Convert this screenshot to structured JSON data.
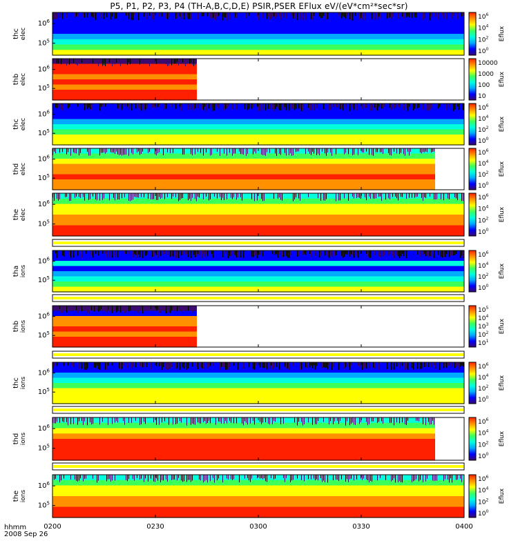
{
  "title": "P5, P1, P2, P3, P4 (TH-A,B,C,D,E) PSIR,PSER EFlux eV/(eV*cm²*sec*sr)",
  "footer": {
    "time_label": "hhmm",
    "date_label": "2008 Sep 26"
  },
  "chart_data": {
    "type": "heatmap",
    "x_ticks": [
      "0200",
      "0230",
      "0300",
      "0330",
      "0400"
    ],
    "panels": [
      {
        "name": "thc-elec",
        "probe": "thc",
        "species": "elec",
        "y_ticks": [
          {
            "base": "10",
            "exp": "6"
          },
          {
            "base": "10",
            "exp": "5"
          }
        ],
        "cbar_label": "Eflux",
        "cbar_ticks": [
          {
            "base": "10",
            "exp": "6"
          },
          {
            "base": "10",
            "exp": "4"
          },
          {
            "base": "10",
            "exp": "2"
          },
          {
            "base": "10",
            "exp": "0"
          }
        ],
        "coverage_end": 1.0
      },
      {
        "name": "thb-elec",
        "probe": "thb",
        "species": "elec",
        "y_ticks": [
          {
            "base": "10",
            "exp": "6"
          },
          {
            "base": "10",
            "exp": "5"
          }
        ],
        "cbar_label": "Eflux",
        "cbar_ticks": [
          {
            "base": "10000",
            "exp": ""
          },
          {
            "base": "1000",
            "exp": ""
          },
          {
            "base": "100",
            "exp": ""
          },
          {
            "base": "10",
            "exp": ""
          }
        ],
        "coverage_end": 0.35
      },
      {
        "name": "thc-elec-2",
        "probe": "thc",
        "species": "elec",
        "y_ticks": [
          {
            "base": "10",
            "exp": "6"
          },
          {
            "base": "10",
            "exp": "5"
          }
        ],
        "cbar_label": "Eflux",
        "cbar_ticks": [
          {
            "base": "10",
            "exp": "6"
          },
          {
            "base": "10",
            "exp": "4"
          },
          {
            "base": "10",
            "exp": "2"
          },
          {
            "base": "10",
            "exp": "0"
          }
        ],
        "coverage_end": 1.0
      },
      {
        "name": "thd-elec",
        "probe": "thd",
        "species": "elec",
        "y_ticks": [
          {
            "base": "10",
            "exp": "6"
          },
          {
            "base": "10",
            "exp": "5"
          }
        ],
        "cbar_label": "Eflux",
        "cbar_ticks": [
          {
            "base": "10",
            "exp": "6"
          },
          {
            "base": "10",
            "exp": "4"
          },
          {
            "base": "10",
            "exp": "2"
          },
          {
            "base": "10",
            "exp": "0"
          }
        ],
        "coverage_end": 0.93
      },
      {
        "name": "the-elec",
        "probe": "the",
        "species": "elec",
        "y_ticks": [
          {
            "base": "10",
            "exp": "6"
          },
          {
            "base": "10",
            "exp": "5"
          }
        ],
        "cbar_label": "Eflux",
        "cbar_ticks": [
          {
            "base": "10",
            "exp": "6"
          },
          {
            "base": "10",
            "exp": "4"
          },
          {
            "base": "10",
            "exp": "2"
          },
          {
            "base": "10",
            "exp": "0"
          }
        ],
        "coverage_end": 1.0
      },
      {
        "name": "tha-ions",
        "probe": "tha",
        "species": "ions",
        "y_ticks": [
          {
            "base": "10",
            "exp": "6"
          },
          {
            "base": "10",
            "exp": "5"
          }
        ],
        "cbar_label": "Eflux",
        "cbar_ticks": [
          {
            "base": "10",
            "exp": "6"
          },
          {
            "base": "10",
            "exp": "4"
          },
          {
            "base": "10",
            "exp": "2"
          },
          {
            "base": "10",
            "exp": "0"
          }
        ],
        "coverage_end": 1.0
      },
      {
        "name": "thb-ions",
        "probe": "thb",
        "species": "ions",
        "y_ticks": [
          {
            "base": "10",
            "exp": "6"
          },
          {
            "base": "10",
            "exp": "5"
          }
        ],
        "cbar_label": "Eflux",
        "cbar_ticks": [
          {
            "base": "10",
            "exp": "5"
          },
          {
            "base": "10",
            "exp": "4"
          },
          {
            "base": "10",
            "exp": "3"
          },
          {
            "base": "10",
            "exp": "2"
          },
          {
            "base": "10",
            "exp": "1"
          }
        ],
        "coverage_end": 0.35
      },
      {
        "name": "thc-ions",
        "probe": "thc",
        "species": "ions",
        "y_ticks": [
          {
            "base": "10",
            "exp": "6"
          },
          {
            "base": "10",
            "exp": "5"
          }
        ],
        "cbar_label": "Eflux",
        "cbar_ticks": [
          {
            "base": "10",
            "exp": "6"
          },
          {
            "base": "10",
            "exp": "4"
          },
          {
            "base": "10",
            "exp": "2"
          },
          {
            "base": "10",
            "exp": "0"
          }
        ],
        "coverage_end": 1.0
      },
      {
        "name": "thd-ions",
        "probe": "thd",
        "species": "ions",
        "y_ticks": [
          {
            "base": "10",
            "exp": "6"
          },
          {
            "base": "10",
            "exp": "5"
          }
        ],
        "cbar_label": "Eflux",
        "cbar_ticks": [
          {
            "base": "10",
            "exp": "6"
          },
          {
            "base": "10",
            "exp": "4"
          },
          {
            "base": "10",
            "exp": "2"
          },
          {
            "base": "10",
            "exp": "0"
          }
        ],
        "coverage_end": 0.93
      },
      {
        "name": "the-ions",
        "probe": "the",
        "species": "ions",
        "y_ticks": [
          {
            "base": "10",
            "exp": "6"
          },
          {
            "base": "10",
            "exp": "5"
          }
        ],
        "cbar_label": "Eflux",
        "cbar_ticks": [
          {
            "base": "10",
            "exp": "6"
          },
          {
            "base": "10",
            "exp": "4"
          },
          {
            "base": "10",
            "exp": "2"
          },
          {
            "base": "10",
            "exp": "0"
          }
        ],
        "coverage_end": 1.0
      }
    ],
    "colorscale": [
      "#3a0a6e",
      "#0000ff",
      "#00aaff",
      "#00ffdd",
      "#3cff5a",
      "#ffff00",
      "#ff9000",
      "#ff2000"
    ]
  }
}
